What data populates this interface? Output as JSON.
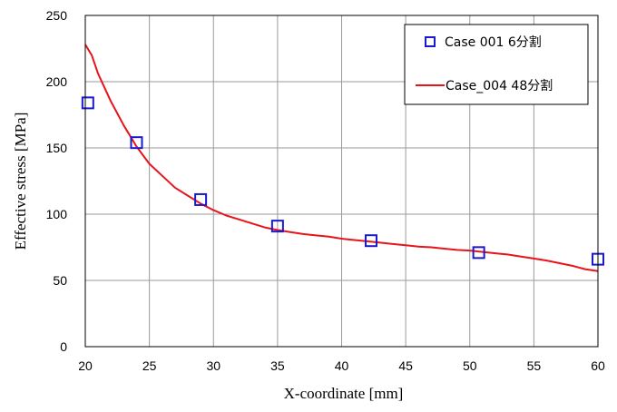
{
  "chart_data": {
    "type": "line",
    "title": "",
    "xlabel": "X-coordinate [mm]",
    "ylabel": "Effective stress [MPa]",
    "xlim": [
      20,
      60
    ],
    "ylim": [
      0,
      250
    ],
    "x_ticks": [
      20,
      25,
      30,
      35,
      40,
      45,
      50,
      55,
      60
    ],
    "y_ticks": [
      0,
      50,
      100,
      150,
      200,
      250
    ],
    "grid": true,
    "legend_position": "top-right",
    "series": [
      {
        "name": "Case 001 6分割",
        "style": "markers",
        "marker": "open-square",
        "color": "#1a1acc",
        "x": [
          20.2,
          24.0,
          29.0,
          35.0,
          42.3,
          50.7,
          60.0
        ],
        "y": [
          184,
          154,
          111,
          91,
          80,
          71,
          66
        ]
      },
      {
        "name": "Case_004 48分割",
        "style": "line",
        "color": "#e8141b",
        "x": [
          20.0,
          20.5,
          21.0,
          22.0,
          23.0,
          24.0,
          25.0,
          26.0,
          27.0,
          28.0,
          29.0,
          30.0,
          31.0,
          32.0,
          33.0,
          34.0,
          35.0,
          36.0,
          37.0,
          38.0,
          39.0,
          40.0,
          41.0,
          42.0,
          43.0,
          44.0,
          45.0,
          46.0,
          47.0,
          48.0,
          49.0,
          50.0,
          51.0,
          52.0,
          53.0,
          54.0,
          55.0,
          56.0,
          57.0,
          58.0,
          59.0,
          60.0
        ],
        "y": [
          228,
          220,
          206,
          185,
          167,
          151,
          138,
          129,
          120,
          114,
          108,
          103,
          99,
          96,
          93,
          90,
          88,
          86.5,
          85,
          84,
          83,
          81.5,
          80.5,
          79.5,
          78.5,
          77.5,
          76.5,
          75.5,
          75,
          74,
          73,
          72.5,
          71.5,
          70.5,
          69.5,
          68,
          66.5,
          65,
          63,
          61,
          58.5,
          57
        ]
      }
    ]
  }
}
